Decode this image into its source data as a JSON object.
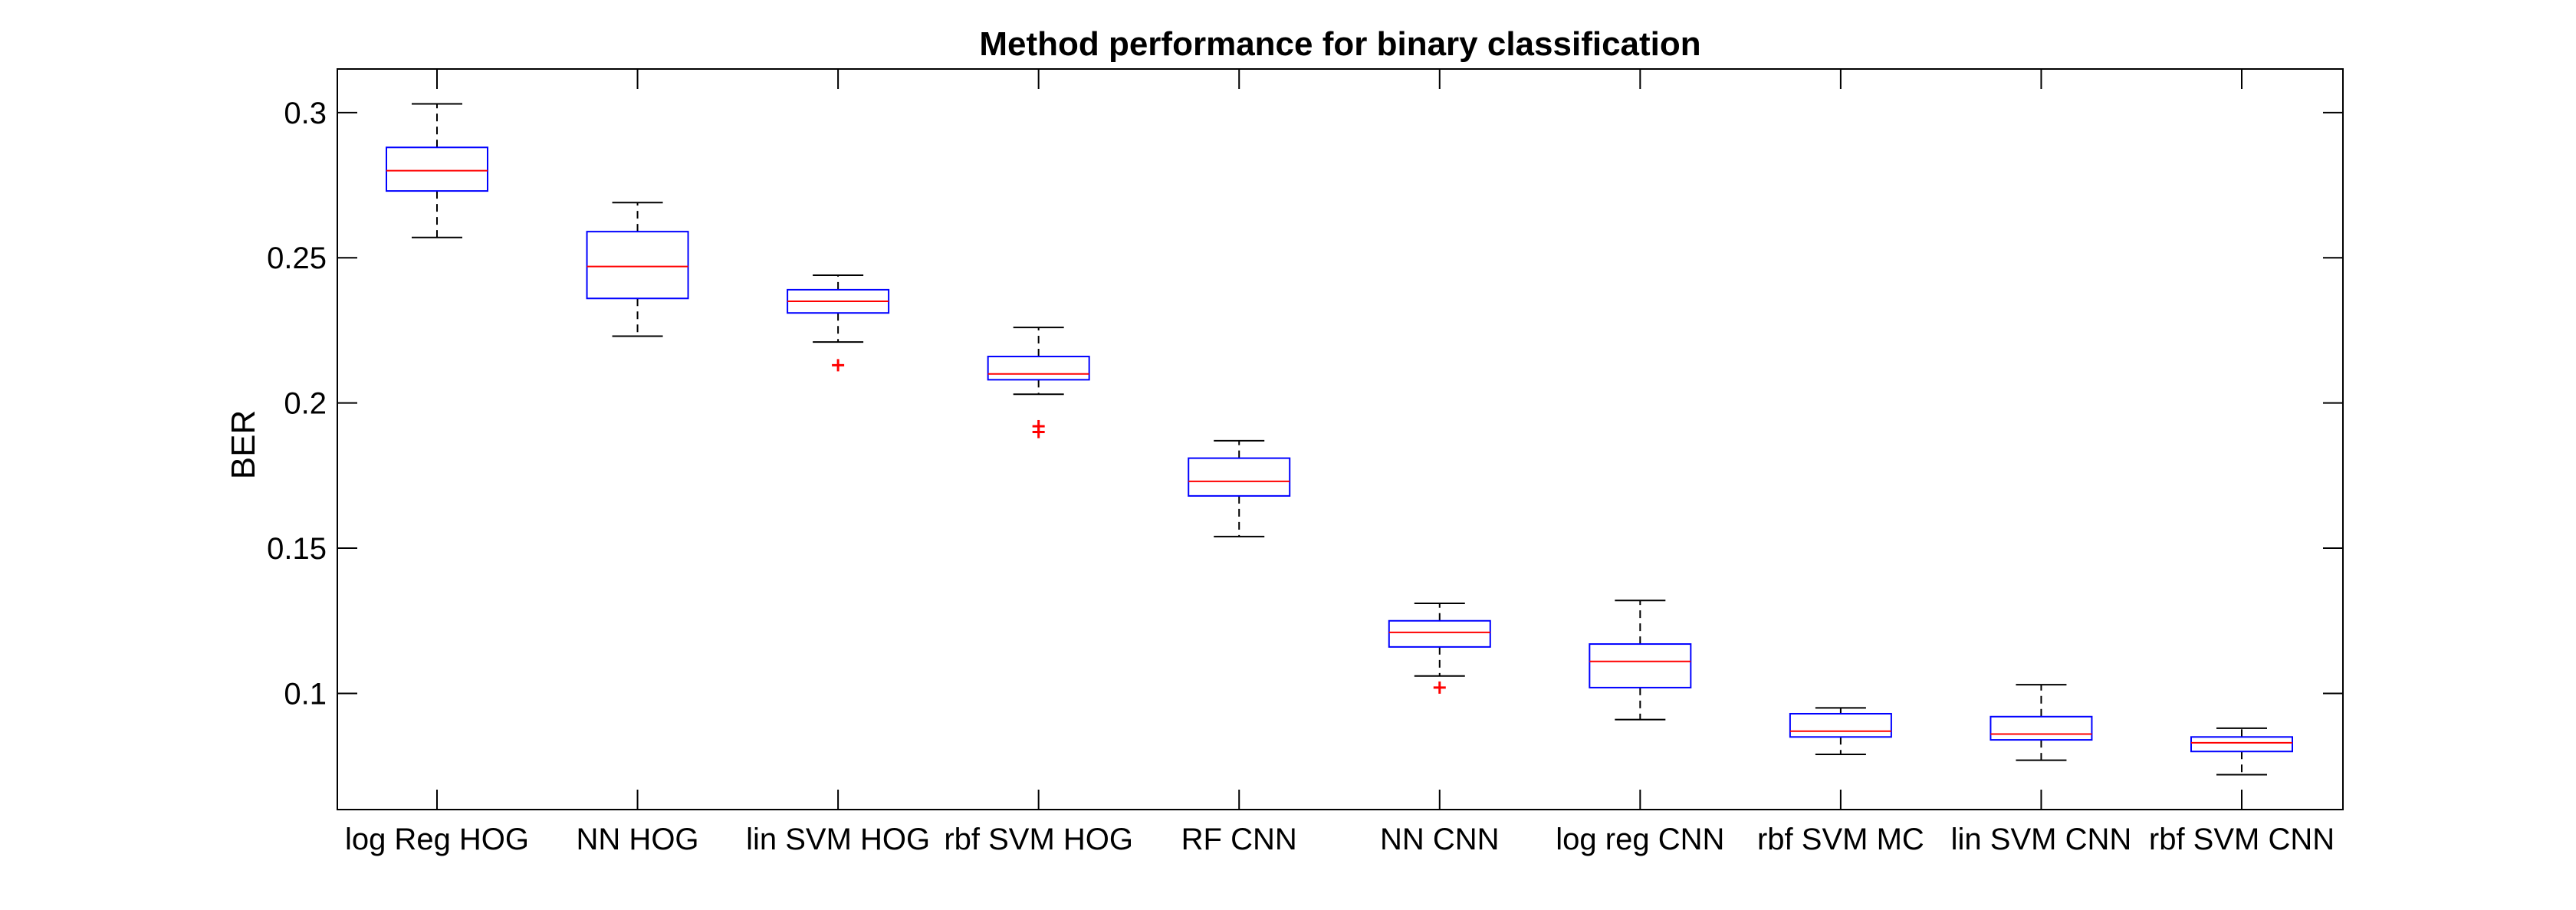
{
  "chart_data": {
    "type": "box",
    "title": "Method performance for binary classification",
    "xlabel": "",
    "ylabel": "BER",
    "ylim": [
      0.06,
      0.315
    ],
    "yticks": [
      0.1,
      0.15,
      0.2,
      0.25,
      0.3
    ],
    "ytick_labels": [
      "0.1",
      "0.15",
      "0.2",
      "0.25",
      "0.3"
    ],
    "grid": false,
    "categories": [
      "log Reg HOG",
      "NN HOG",
      "lin SVM HOG",
      "rbf SVM HOG",
      "RF CNN",
      "NN CNN",
      "log reg CNN",
      "rbf SVM MC",
      "lin SVM CNN",
      "rbf SVM CNN"
    ],
    "boxes": [
      {
        "whisker_low": 0.257,
        "q1": 0.273,
        "median": 0.28,
        "q3": 0.288,
        "whisker_high": 0.303,
        "outliers": []
      },
      {
        "whisker_low": 0.223,
        "q1": 0.236,
        "median": 0.247,
        "q3": 0.259,
        "whisker_high": 0.269,
        "outliers": []
      },
      {
        "whisker_low": 0.221,
        "q1": 0.231,
        "median": 0.235,
        "q3": 0.239,
        "whisker_high": 0.244,
        "outliers": [
          0.213
        ]
      },
      {
        "whisker_low": 0.203,
        "q1": 0.208,
        "median": 0.21,
        "q3": 0.216,
        "whisker_high": 0.226,
        "outliers": [
          0.192,
          0.19
        ]
      },
      {
        "whisker_low": 0.154,
        "q1": 0.168,
        "median": 0.173,
        "q3": 0.181,
        "whisker_high": 0.187,
        "outliers": []
      },
      {
        "whisker_low": 0.106,
        "q1": 0.116,
        "median": 0.121,
        "q3": 0.125,
        "whisker_high": 0.131,
        "outliers": [
          0.102
        ]
      },
      {
        "whisker_low": 0.091,
        "q1": 0.102,
        "median": 0.111,
        "q3": 0.117,
        "whisker_high": 0.132,
        "outliers": []
      },
      {
        "whisker_low": 0.079,
        "q1": 0.085,
        "median": 0.087,
        "q3": 0.093,
        "whisker_high": 0.095,
        "outliers": []
      },
      {
        "whisker_low": 0.077,
        "q1": 0.084,
        "median": 0.086,
        "q3": 0.092,
        "whisker_high": 0.103,
        "outliers": []
      },
      {
        "whisker_low": 0.072,
        "q1": 0.08,
        "median": 0.083,
        "q3": 0.085,
        "whisker_high": 0.088,
        "outliers": []
      }
    ],
    "colors": {
      "box": "#0000ff",
      "median": "#ff0000",
      "whisker": "#000000",
      "outlier": "#ff0000",
      "axes": "#000000"
    }
  }
}
